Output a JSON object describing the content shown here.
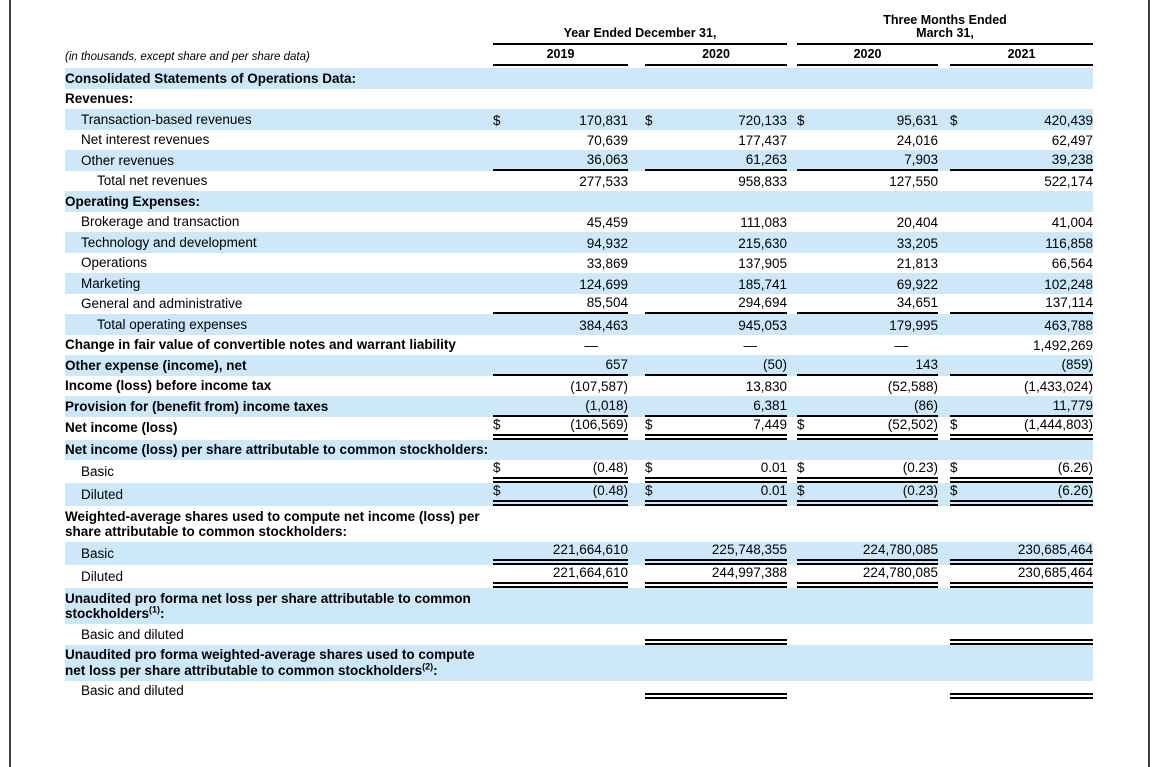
{
  "colors": {
    "stripe": "#cde8f8",
    "rule": "#000000",
    "text": "#000000"
  },
  "header": {
    "group1": "Year Ended December 31,",
    "group2_line1": "Three Months Ended",
    "group2_line2": "March 31,",
    "years": [
      "2019",
      "2020",
      "2020",
      "2021"
    ],
    "caption": "(in thousands, except share and per share data)"
  },
  "rows": [
    {
      "label": "Consolidated Statements of Operations Data:",
      "bold": true,
      "indent": 0,
      "stripe": true,
      "cells": null,
      "rule": "none"
    },
    {
      "label": "Revenues:",
      "bold": true,
      "indent": 0,
      "stripe": false,
      "cells": null,
      "rule": "none"
    },
    {
      "label": "Transaction-based revenues",
      "bold": false,
      "indent": 1,
      "stripe": true,
      "cells": [
        [
          "$",
          "170,831"
        ],
        [
          "$",
          "720,133"
        ],
        [
          "$",
          "95,631"
        ],
        [
          "$",
          "420,439"
        ]
      ],
      "rule": "none"
    },
    {
      "label": "Net interest revenues",
      "bold": false,
      "indent": 1,
      "stripe": false,
      "cells": [
        [
          "",
          "70,639"
        ],
        [
          "",
          "177,437"
        ],
        [
          "",
          "24,016"
        ],
        [
          "",
          "62,497"
        ]
      ],
      "rule": "none"
    },
    {
      "label": "Other revenues",
      "bold": false,
      "indent": 1,
      "stripe": true,
      "cells": [
        [
          "",
          "36,063"
        ],
        [
          "",
          "61,263"
        ],
        [
          "",
          "7,903"
        ],
        [
          "",
          "39,238"
        ]
      ],
      "rule": "single"
    },
    {
      "label": "Total net revenues",
      "bold": false,
      "indent": 2,
      "stripe": false,
      "cells": [
        [
          "",
          "277,533"
        ],
        [
          "",
          "958,833"
        ],
        [
          "",
          "127,550"
        ],
        [
          "",
          "522,174"
        ]
      ],
      "rule": "none"
    },
    {
      "label": "Operating Expenses:",
      "bold": true,
      "indent": 0,
      "stripe": true,
      "cells": null,
      "rule": "none"
    },
    {
      "label": "Brokerage and transaction",
      "bold": false,
      "indent": 1,
      "stripe": false,
      "cells": [
        [
          "",
          "45,459"
        ],
        [
          "",
          "111,083"
        ],
        [
          "",
          "20,404"
        ],
        [
          "",
          "41,004"
        ]
      ],
      "rule": "none"
    },
    {
      "label": "Technology and development",
      "bold": false,
      "indent": 1,
      "stripe": true,
      "cells": [
        [
          "",
          "94,932"
        ],
        [
          "",
          "215,630"
        ],
        [
          "",
          "33,205"
        ],
        [
          "",
          "116,858"
        ]
      ],
      "rule": "none"
    },
    {
      "label": "Operations",
      "bold": false,
      "indent": 1,
      "stripe": false,
      "cells": [
        [
          "",
          "33,869"
        ],
        [
          "",
          "137,905"
        ],
        [
          "",
          "21,813"
        ],
        [
          "",
          "66,564"
        ]
      ],
      "rule": "none"
    },
    {
      "label": "Marketing",
      "bold": false,
      "indent": 1,
      "stripe": true,
      "cells": [
        [
          "",
          "124,699"
        ],
        [
          "",
          "185,741"
        ],
        [
          "",
          "69,922"
        ],
        [
          "",
          "102,248"
        ]
      ],
      "rule": "none"
    },
    {
      "label": "General and administrative",
      "bold": false,
      "indent": 1,
      "stripe": false,
      "cells": [
        [
          "",
          "85,504"
        ],
        [
          "",
          "294,694"
        ],
        [
          "",
          "34,651"
        ],
        [
          "",
          "137,114"
        ]
      ],
      "rule": "single"
    },
    {
      "label": "Total operating expenses",
      "bold": false,
      "indent": 2,
      "stripe": true,
      "cells": [
        [
          "",
          "384,463"
        ],
        [
          "",
          "945,053"
        ],
        [
          "",
          "179,995"
        ],
        [
          "",
          "463,788"
        ]
      ],
      "rule": "none"
    },
    {
      "label": "Change in fair value of convertible notes and warrant liability",
      "bold": true,
      "indent": 0,
      "stripe": false,
      "cells": [
        [
          "",
          "—"
        ],
        [
          "",
          "—"
        ],
        [
          "",
          "—"
        ],
        [
          "",
          "1,492,269"
        ]
      ],
      "rule": "none"
    },
    {
      "label": "Other expense (income), net",
      "bold": true,
      "indent": 0,
      "stripe": true,
      "cells": [
        [
          "",
          "657"
        ],
        [
          "",
          "(50)"
        ],
        [
          "",
          "143"
        ],
        [
          "",
          "(859)"
        ]
      ],
      "rule": "single"
    },
    {
      "label": "Income (loss) before income tax",
      "bold": true,
      "indent": 0,
      "stripe": false,
      "cells": [
        [
          "",
          "(107,587)"
        ],
        [
          "",
          "13,830"
        ],
        [
          "",
          "(52,588)"
        ],
        [
          "",
          "(1,433,024)"
        ]
      ],
      "rule": "none"
    },
    {
      "label": "Provision for (benefit from) income taxes",
      "bold": true,
      "indent": 0,
      "stripe": true,
      "cells": [
        [
          "",
          "(1,018)"
        ],
        [
          "",
          "6,381"
        ],
        [
          "",
          "(86)"
        ],
        [
          "",
          "11,779"
        ]
      ],
      "rule": "single"
    },
    {
      "label": "Net income (loss)",
      "bold": true,
      "indent": 0,
      "stripe": false,
      "cells": [
        [
          "$",
          "(106,569)"
        ],
        [
          "$",
          "7,449"
        ],
        [
          "$",
          "(52,502)"
        ],
        [
          "$",
          "(1,444,803)"
        ]
      ],
      "rule": "double"
    },
    {
      "label": "Net income (loss) per share attributable to common stockholders:",
      "bold": true,
      "indent": 0,
      "stripe": true,
      "cells": null,
      "rule": "none"
    },
    {
      "label": "Basic",
      "bold": false,
      "indent": 1,
      "stripe": false,
      "cells": [
        [
          "$",
          "(0.48)"
        ],
        [
          "$",
          "0.01"
        ],
        [
          "$",
          "(0.23)"
        ],
        [
          "$",
          "(6.26)"
        ]
      ],
      "rule": "double"
    },
    {
      "label": "Diluted",
      "bold": false,
      "indent": 1,
      "stripe": true,
      "cells": [
        [
          "$",
          "(0.48)"
        ],
        [
          "$",
          "0.01"
        ],
        [
          "$",
          "(0.23)"
        ],
        [
          "$",
          "(6.26)"
        ]
      ],
      "rule": "double"
    },
    {
      "label": "Weighted-average shares used to compute net income (loss) per share attributable to common stockholders:",
      "bold": true,
      "indent": 0,
      "stripe": false,
      "cells": null,
      "rule": "none"
    },
    {
      "label": "Basic",
      "bold": false,
      "indent": 1,
      "stripe": true,
      "cells": [
        [
          "",
          "221,664,610"
        ],
        [
          "",
          "225,748,355"
        ],
        [
          "",
          "224,780,085"
        ],
        [
          "",
          "230,685,464"
        ]
      ],
      "rule": "double"
    },
    {
      "label": "Diluted",
      "bold": false,
      "indent": 1,
      "stripe": false,
      "cells": [
        [
          "",
          "221,664,610"
        ],
        [
          "",
          "244,997,388"
        ],
        [
          "",
          "224,780,085"
        ],
        [
          "",
          "230,685,464"
        ]
      ],
      "rule": "double"
    },
    {
      "label": "Unaudited pro forma net loss per share attributable to common stockholders",
      "sup": "(1)",
      "tail": ":",
      "bold": true,
      "indent": 0,
      "stripe": true,
      "cells": null,
      "rule": "none"
    },
    {
      "label": "Basic and diluted",
      "bold": false,
      "indent": 1,
      "stripe": false,
      "cells": [
        [
          "",
          ""
        ],
        [
          "",
          ""
        ],
        [
          "",
          ""
        ],
        [
          "",
          ""
        ]
      ],
      "rule": "double",
      "rule_cols": [
        false,
        true,
        false,
        true
      ]
    },
    {
      "label": "Unaudited pro forma weighted-average shares used to compute net loss per share attributable to common stockholders",
      "sup": "(2)",
      "tail": ":",
      "bold": true,
      "indent": 0,
      "stripe": true,
      "cells": null,
      "rule": "none"
    },
    {
      "label": "Basic and diluted",
      "bold": false,
      "indent": 1,
      "stripe": false,
      "cells": [
        [
          "",
          ""
        ],
        [
          "",
          ""
        ],
        [
          "",
          ""
        ],
        [
          "",
          ""
        ]
      ],
      "rule": "double",
      "rule_cols": [
        false,
        true,
        false,
        true
      ],
      "pad_rule": true
    }
  ]
}
